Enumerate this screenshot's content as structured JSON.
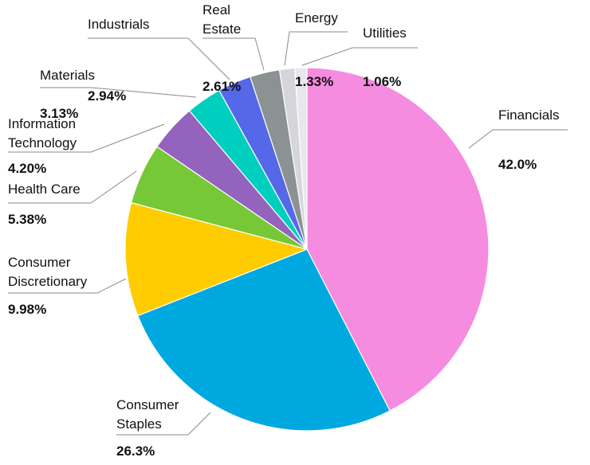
{
  "chart_data": {
    "type": "pie",
    "start_angle_deg": 0,
    "direction": "clockwise",
    "slices": [
      {
        "key": "financials",
        "lines": [
          "Financials"
        ],
        "label": "Financials",
        "value": 42.0,
        "value_text": "42.0%",
        "color": "#F58CDF",
        "anchor": "start"
      },
      {
        "key": "consumer-staples",
        "lines": [
          "Consumer",
          "Staples"
        ],
        "label": "Consumer Staples",
        "value": 26.3,
        "value_text": "26.3%",
        "color": "#00A8E0",
        "anchor": "start"
      },
      {
        "key": "consumer-discretionary",
        "lines": [
          "Consumer",
          "Discretionary"
        ],
        "label": "Consumer Discretionary",
        "value": 9.98,
        "value_text": "9.98%",
        "color": "#FFCC00",
        "anchor": "start"
      },
      {
        "key": "health-care",
        "lines": [
          "Health Care"
        ],
        "label": "Health Care",
        "value": 5.38,
        "value_text": "5.38%",
        "color": "#76C836",
        "anchor": "start"
      },
      {
        "key": "information-technology",
        "lines": [
          "Information",
          "Technology"
        ],
        "label": "Information Technology",
        "value": 4.2,
        "value_text": "4.20%",
        "color": "#9463BD",
        "anchor": "start"
      },
      {
        "key": "materials",
        "lines": [
          "Materials"
        ],
        "label": "Materials",
        "value": 3.13,
        "value_text": "3.13%",
        "color": "#00CFC0",
        "anchor": "start"
      },
      {
        "key": "industrials",
        "lines": [
          "Industrials"
        ],
        "label": "Industrials",
        "value": 2.94,
        "value_text": "2.94%",
        "color": "#5468E8",
        "anchor": "start"
      },
      {
        "key": "real-estate",
        "lines": [
          "Real",
          "Estate"
        ],
        "label": "Real Estate",
        "value": 2.61,
        "value_text": "2.61%",
        "color": "#8C9293",
        "anchor": "start"
      },
      {
        "key": "energy",
        "lines": [
          "Energy"
        ],
        "label": "Energy",
        "value": 1.33,
        "value_text": "1.33%",
        "color": "#D5D5DC",
        "anchor": "start"
      },
      {
        "key": "utilities",
        "lines": [
          "Utilities"
        ],
        "label": "Utilities",
        "value": 1.06,
        "value_text": "1.06%",
        "color": "#E8E8EC",
        "anchor": "start"
      }
    ]
  }
}
